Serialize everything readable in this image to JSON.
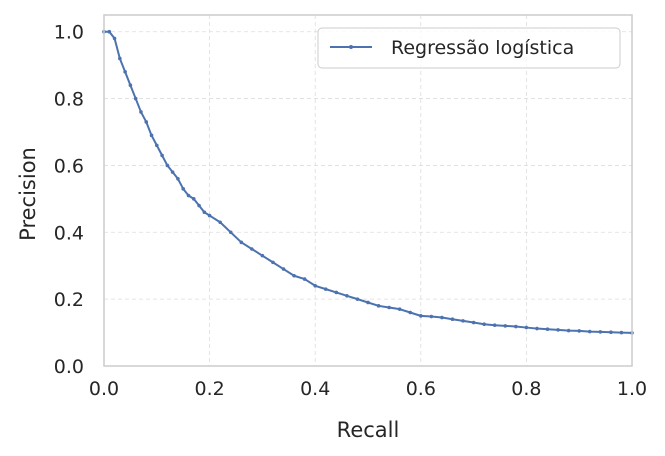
{
  "chart_data": {
    "type": "line",
    "xlabel": "Recall",
    "ylabel": "Precision",
    "xlim": [
      0.0,
      1.0
    ],
    "ylim": [
      0.0,
      1.05
    ],
    "x_ticks": [
      0.0,
      0.2,
      0.4,
      0.6,
      0.8,
      1.0
    ],
    "y_ticks": [
      0.0,
      0.2,
      0.4,
      0.6,
      0.8,
      1.0
    ],
    "x_tick_labels": [
      "0.0",
      "0.2",
      "0.4",
      "0.6",
      "0.8",
      "1.0"
    ],
    "y_tick_labels": [
      "0.0",
      "0.2",
      "0.4",
      "0.6",
      "0.8",
      "1.0"
    ],
    "grid": true,
    "legend_position": "top-right",
    "series": [
      {
        "name": "Regressão logística",
        "color": "#4c72b0",
        "x": [
          0.0,
          0.01,
          0.02,
          0.03,
          0.04,
          0.05,
          0.06,
          0.07,
          0.08,
          0.09,
          0.1,
          0.11,
          0.12,
          0.13,
          0.14,
          0.15,
          0.16,
          0.17,
          0.18,
          0.19,
          0.2,
          0.22,
          0.24,
          0.26,
          0.28,
          0.3,
          0.32,
          0.34,
          0.36,
          0.38,
          0.4,
          0.42,
          0.44,
          0.46,
          0.48,
          0.5,
          0.52,
          0.54,
          0.56,
          0.58,
          0.6,
          0.62,
          0.64,
          0.66,
          0.68,
          0.7,
          0.72,
          0.74,
          0.76,
          0.78,
          0.8,
          0.82,
          0.84,
          0.86,
          0.88,
          0.9,
          0.92,
          0.94,
          0.96,
          0.98,
          1.0
        ],
        "y": [
          1.0,
          1.0,
          0.98,
          0.92,
          0.88,
          0.84,
          0.8,
          0.76,
          0.73,
          0.69,
          0.66,
          0.63,
          0.6,
          0.58,
          0.56,
          0.53,
          0.51,
          0.5,
          0.48,
          0.46,
          0.45,
          0.43,
          0.4,
          0.37,
          0.35,
          0.33,
          0.31,
          0.29,
          0.27,
          0.26,
          0.24,
          0.23,
          0.22,
          0.21,
          0.2,
          0.19,
          0.18,
          0.175,
          0.17,
          0.16,
          0.15,
          0.148,
          0.145,
          0.14,
          0.135,
          0.13,
          0.125,
          0.122,
          0.12,
          0.118,
          0.115,
          0.112,
          0.11,
          0.108,
          0.106,
          0.105,
          0.103,
          0.102,
          0.101,
          0.1,
          0.099
        ]
      }
    ]
  }
}
